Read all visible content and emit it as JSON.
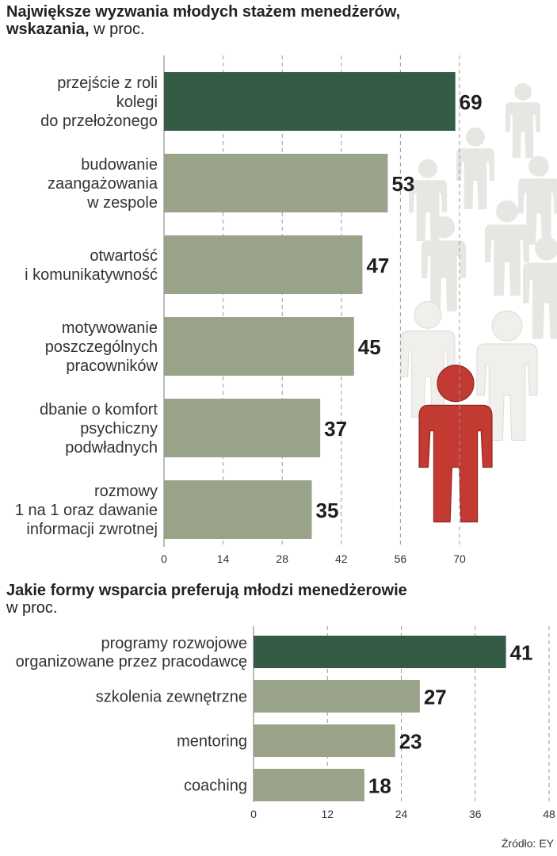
{
  "chart_data": [
    {
      "type": "bar",
      "orientation": "horizontal",
      "title": "Największe wyzwania młodych stażem menedżerów,",
      "title_line2_bold": "wskazania,",
      "title_line2_regular": " w proc.",
      "categories": [
        [
          "przejście z roli",
          "kolegi",
          "do przełożonego"
        ],
        [
          "budowanie",
          "zaangażowania",
          "w zespole"
        ],
        [
          "otwartość",
          "i komunikatywność"
        ],
        [
          "motywowanie",
          "poszczególnych",
          "pracowników"
        ],
        [
          "dbanie o komfort",
          "psychiczny",
          "podwładnych"
        ],
        [
          "rozmowy",
          "1 na 1 oraz dawanie",
          "informacji zwrotnej"
        ]
      ],
      "values": [
        69,
        53,
        47,
        45,
        37,
        35
      ],
      "highlight_index": 0,
      "xlim": [
        0,
        70
      ],
      "xticks": [
        0,
        14,
        28,
        42,
        56,
        70
      ],
      "grid": "vertical dashed"
    },
    {
      "type": "bar",
      "orientation": "horizontal",
      "title": "Jakie formy wsparcia preferują młodzi menedżerowie",
      "subtitle": "w proc.",
      "categories": [
        [
          "programy rozwojowe",
          "organizowane przez pracodawcę"
        ],
        [
          "szkolenia zewnętrzne"
        ],
        [
          "mentoring"
        ],
        [
          "coaching"
        ]
      ],
      "values": [
        41,
        27,
        23,
        18
      ],
      "highlight_index": 0,
      "xlim": [
        0,
        48
      ],
      "xticks": [
        0,
        12,
        24,
        36,
        48
      ],
      "grid": "vertical dashed"
    }
  ],
  "source": "Źródło: EY",
  "colors": {
    "highlight": "#345c45",
    "bar": "#98a38a",
    "grid": "#9a9a9a",
    "figure": "#c23a32"
  }
}
